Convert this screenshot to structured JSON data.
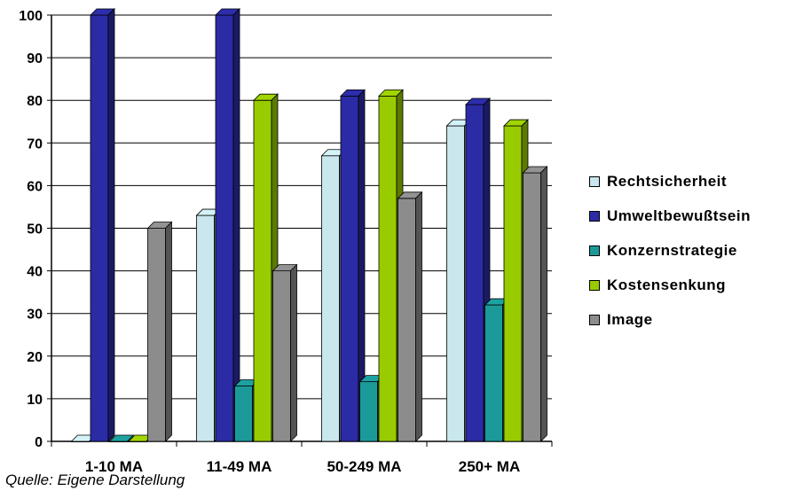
{
  "chart_data": {
    "type": "bar",
    "categories": [
      "1-10 MA",
      "11-49 MA",
      "50-249 MA",
      "250+ MA"
    ],
    "series": [
      {
        "name": "Rechtsicherheit",
        "color": "#c9e7ec",
        "values": [
          0,
          53,
          67,
          74
        ]
      },
      {
        "name": "Umweltbewußtsein",
        "color": "#2b2ba6",
        "values": [
          100,
          100,
          81,
          79
        ]
      },
      {
        "name": "Konzernstrategie",
        "color": "#1c9a9a",
        "values": [
          0,
          13,
          14,
          32
        ]
      },
      {
        "name": "Kostensenkung",
        "color": "#99cc00",
        "values": [
          0,
          80,
          81,
          74
        ]
      },
      {
        "name": "Image",
        "color": "#8c8c8c",
        "values": [
          50,
          40,
          57,
          63
        ]
      }
    ],
    "ylim": [
      0,
      100
    ],
    "yticks": [
      "0",
      "10",
      "20",
      "30",
      "40",
      "50",
      "60",
      "70",
      "80",
      "90",
      "100"
    ],
    "grid": true,
    "legend_position": "right"
  },
  "source_note": "Quelle: Eigene Darstellung"
}
